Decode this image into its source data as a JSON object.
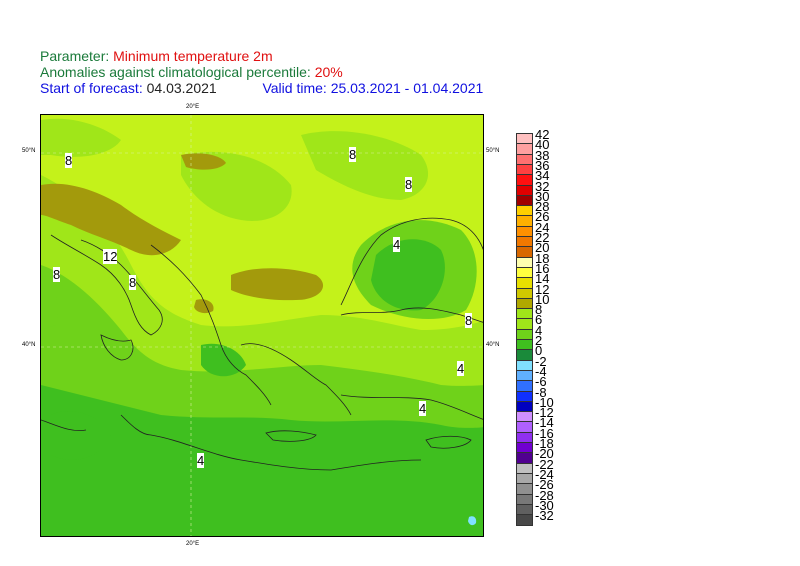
{
  "header": {
    "parameter_label": "Parameter: ",
    "parameter_value": "Minimum temperature 2m",
    "anomaly_label": "Anomalies against climatological percentile: ",
    "anomaly_value": "20%",
    "start_label": "Start of forecast: ",
    "start_value": "04.03.2021",
    "valid_label": "Valid time: ",
    "valid_value": "25.03.2021 - 01.04.2021"
  },
  "map": {
    "lon_tick": "20°E",
    "lat_ticks": [
      "50°N",
      "40°N"
    ],
    "contour_labels": [
      "8",
      "8",
      "8",
      "12",
      "8",
      "8",
      "4",
      "8",
      "4",
      "4",
      "4"
    ]
  },
  "colors": {
    "anomaly_0_2": "#1f9a3a",
    "anomaly_2_4": "#3fbf1f",
    "anomaly_4_6": "#6fd21a",
    "anomaly_6_8": "#a0e619",
    "anomaly_8_10": "#c4f21a",
    "anomaly_10_12": "#a39a0c",
    "coastline": "#222222"
  },
  "legend": {
    "labels": [
      "42",
      "40",
      "38",
      "36",
      "34",
      "32",
      "30",
      "28",
      "26",
      "24",
      "22",
      "20",
      "18",
      "16",
      "14",
      "12",
      "10",
      "8",
      "6",
      "4",
      "2",
      "0",
      "-2",
      "-4",
      "-6",
      "-8",
      "-10",
      "-12",
      "-14",
      "-16",
      "-18",
      "-20",
      "-22",
      "-24",
      "-26",
      "-28",
      "-30",
      "-32"
    ],
    "colors": [
      "#ffc0c0",
      "#ffa0a0",
      "#ff7070",
      "#ff4040",
      "#ff1010",
      "#e00000",
      "#a00000",
      "#ffd000",
      "#ffb000",
      "#ff9000",
      "#f07800",
      "#d86800",
      "#ffffb0",
      "#ffff40",
      "#e8e000",
      "#d0c800",
      "#b0a800",
      "#a0e619",
      "#a0e619",
      "#6fd21a",
      "#3fbf1f",
      "#1a8a3a",
      "#80e0ff",
      "#60b0ff",
      "#3070ff",
      "#1030ff",
      "#0000c0",
      "#d090ff",
      "#b060ff",
      "#9030f0",
      "#7000d0",
      "#500090",
      "#c0c0c0",
      "#a8a8a8",
      "#909090",
      "#787878",
      "#606060",
      "#484848"
    ]
  }
}
